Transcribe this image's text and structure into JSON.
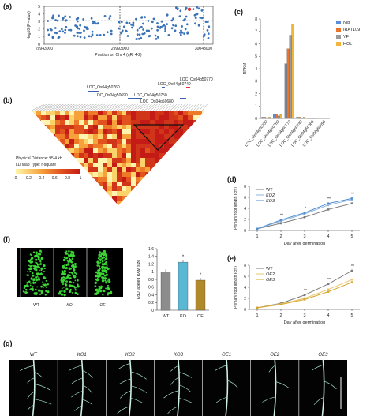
{
  "panel_labels": {
    "a": "(a)",
    "b": "(b)",
    "c": "(c)",
    "d": "(d)",
    "e": "(e)",
    "f": "(f)",
    "g": "(g)"
  },
  "panel_a": {
    "xticks": [
      "29943000",
      "29993000",
      "30043000"
    ],
    "yticks": [
      "0",
      "1",
      "2",
      "3",
      "4",
      "5"
    ],
    "xlabel": "Position on Chr 4 (qRl 4-2)",
    "ylabel": "-log10 (P-value)",
    "marker_color": "#3a73b8",
    "lead_color": "#e03030"
  },
  "panel_b": {
    "genes": [
      "LOC_Os04g50740",
      "LOC_Os04g50770",
      "LOC_Os04g50760",
      "LOC_Os04g50750",
      "LOC_Os04g50690",
      "LOC_Os04g50680"
    ],
    "distance": "Physical Distance: 95.4 kb",
    "maptype": "LD Map Type: r-square",
    "scale_ticks": [
      "0",
      "0.2",
      "0.4",
      "0.6",
      "0.8",
      "1"
    ]
  },
  "chart_data": [
    {
      "type": "bar",
      "panel": "c",
      "ylabel": "RPKM",
      "ylim": [
        0,
        8
      ],
      "yticks": [
        "0",
        "1",
        "2",
        "3",
        "4",
        "5",
        "6",
        "7",
        "8"
      ],
      "categories": [
        "LOC_Os04g50750",
        "LOC_Os04g50760",
        "LOC_Os04g50770",
        "LOC_Os04g50740",
        "LOC_Os04g50680",
        "LOC_Os04g50690"
      ],
      "series": [
        {
          "name": "Nip",
          "color": "#5b8fd4",
          "values": [
            0.1,
            0.3,
            4.4,
            0.1,
            0.05,
            0.0
          ]
        },
        {
          "name": "IRAT109",
          "color": "#e8752a",
          "values": [
            0.1,
            0.3,
            5.6,
            0.1,
            0.05,
            0.0
          ]
        },
        {
          "name": "YF",
          "color": "#9a9a9a",
          "values": [
            0.05,
            0.2,
            6.7,
            0.05,
            0.02,
            0.0
          ]
        },
        {
          "name": "HOL",
          "color": "#f0b63a",
          "values": [
            0.1,
            0.3,
            7.6,
            0.1,
            0.05,
            0.0
          ]
        }
      ],
      "legend_position": "top-right"
    },
    {
      "type": "line",
      "panel": "d",
      "xlabel": "Day after germination",
      "ylabel": "Primary root length (cm)",
      "x": [
        1,
        2,
        3,
        4,
        5
      ],
      "ylim": [
        0,
        8
      ],
      "yticks": [
        "0",
        "2",
        "4",
        "6",
        "8"
      ],
      "xticks": [
        "1",
        "2",
        "3",
        "4",
        "5"
      ],
      "series": [
        {
          "name": "WT",
          "color": "#7a7a7a",
          "values": [
            0.3,
            1.3,
            2.4,
            3.8,
            4.9
          ]
        },
        {
          "name": "KO2",
          "color": "#8fb3dd",
          "values": [
            0.3,
            1.7,
            3.0,
            4.6,
            5.6
          ]
        },
        {
          "name": "KO3",
          "color": "#4f8fd2",
          "values": [
            0.3,
            1.9,
            3.2,
            4.9,
            5.8
          ]
        }
      ],
      "annotations": [
        "**",
        "*",
        "**",
        "**"
      ]
    },
    {
      "type": "line",
      "panel": "e",
      "xlabel": "Day after germination",
      "ylabel": "Primary root length (cm)",
      "x": [
        1,
        2,
        3,
        4,
        5
      ],
      "ylim": [
        0,
        8
      ],
      "yticks": [
        "0",
        "2",
        "4",
        "6",
        "8"
      ],
      "xticks": [
        "1",
        "2",
        "3",
        "4",
        "5"
      ],
      "series": [
        {
          "name": "WT",
          "color": "#7a7a7a",
          "values": [
            0.3,
            1.1,
            2.6,
            4.6,
            7.0
          ]
        },
        {
          "name": "OE2",
          "color": "#e9c56a",
          "values": [
            0.3,
            1.0,
            2.0,
            3.6,
            5.4
          ]
        },
        {
          "name": "OE3",
          "color": "#d4a52a",
          "values": [
            0.3,
            0.9,
            1.8,
            3.2,
            4.9
          ]
        }
      ],
      "annotations": [
        "**",
        "**",
        "**"
      ]
    },
    {
      "type": "bar",
      "panel": "f",
      "ylabel": "EdU labeled RAM size",
      "ylim": [
        0,
        1.6
      ],
      "yticks": [
        "0",
        "0.2",
        "0.4",
        "0.6",
        "0.8",
        "1",
        "1.2",
        "1.4",
        "1.6"
      ],
      "categories": [
        "WT",
        "KO",
        "OE"
      ],
      "values": [
        1.0,
        1.25,
        0.78
      ],
      "colors": [
        "#8c8c8c",
        "#5bb8d4",
        "#b08a2a"
      ],
      "annotations": [
        "",
        "*",
        "*"
      ]
    }
  ],
  "panel_f": {
    "image_labels": [
      "WT",
      "KO",
      "OE"
    ]
  },
  "panel_g": {
    "labels": [
      "WT",
      "KO1",
      "KO2",
      "KO3",
      "OE1",
      "OE2",
      "OE3"
    ]
  }
}
